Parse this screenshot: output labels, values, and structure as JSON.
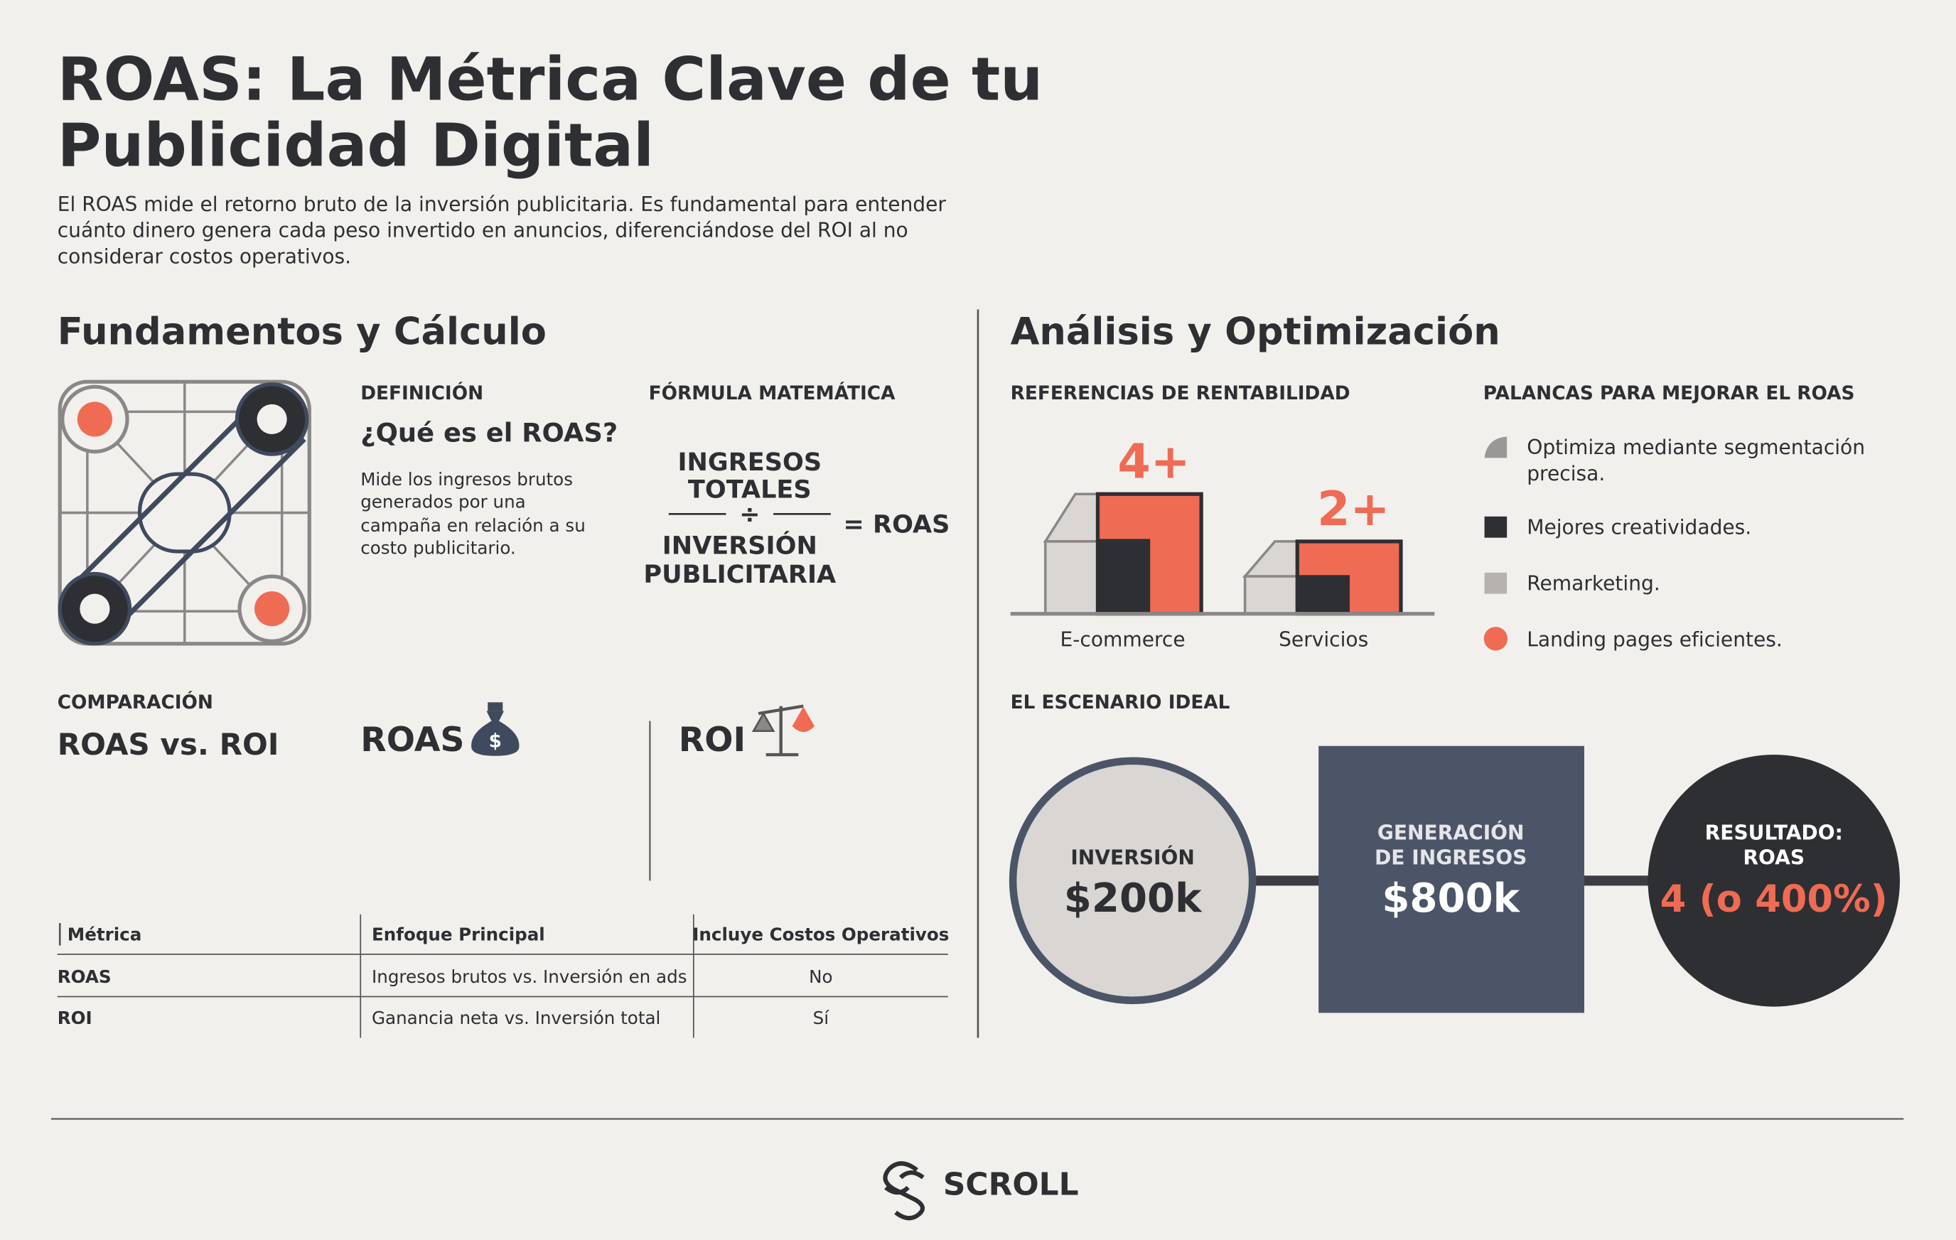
{
  "header": {
    "title_lines": [
      "ROAS: La Métrica Clave de tu",
      "Publicidad Digital"
    ],
    "intro_lines": [
      "El ROAS mide el retorno bruto de la inversión publicitaria. Es fundamental para entender",
      "cuánto dinero genera cada peso invertido en anuncios, diferenciándose del ROI al no",
      "considerar costos operativos."
    ]
  },
  "left": {
    "heading": "Fundamentos y Cálculo",
    "definition": {
      "label": "DEFINICIÓN",
      "question": "¿Qué es el ROAS?",
      "text_lines": [
        "Mide los ingresos brutos",
        "generados por una",
        "campaña en relación a su",
        "costo publicitario."
      ]
    },
    "formula": {
      "label": "FÓRMULA MATEMÁTICA",
      "numerator": [
        "INGRESOS",
        "TOTALES"
      ],
      "operator": "÷",
      "denominator": [
        "INVERSIÓN",
        "PUBLICITARIA"
      ],
      "result": "= ROAS"
    },
    "comparison": {
      "label": "COMPARACIÓN",
      "title": "ROAS vs. ROI",
      "left_title": "ROAS",
      "right_title": "ROI"
    },
    "table": {
      "headers": [
        "Métrica",
        "Enfoque Principal",
        "Incluye Costos Operativos"
      ],
      "rows": [
        [
          "ROAS",
          "Ingresos brutos vs. Inversión en ads",
          "No"
        ],
        [
          "ROI",
          "Ganancia neta vs. Inversión total",
          "Sí"
        ]
      ]
    }
  },
  "right": {
    "heading": "Análisis y Optimización",
    "benchmarks": {
      "label": "REFERENCIAS DE RENTABILIDAD",
      "items": [
        {
          "value": "4+",
          "name": "E-commerce"
        },
        {
          "value": "2+",
          "name": "Servicios"
        }
      ]
    },
    "levers": {
      "label": "PALANCAS PARA MEJORAR EL ROAS",
      "items": [
        [
          "Optimiza mediante segmentación",
          "precisa."
        ],
        [
          "Mejores creatividades."
        ],
        [
          "Remarketing."
        ],
        [
          "Landing pages eficientes."
        ]
      ]
    },
    "scenario": {
      "label": "EL ESCENARIO IDEAL",
      "steps": [
        {
          "label": [
            "INVERSIÓN"
          ],
          "value": "$200k"
        },
        {
          "label": [
            "GENERACIÓN",
            "DE INGRESOS"
          ],
          "value": "$800k"
        },
        {
          "label": [
            "RESULTADO:",
            "ROAS"
          ],
          "value": "4 (o 400%)"
        }
      ]
    }
  },
  "footer": {
    "brand": "SCROLL"
  }
}
